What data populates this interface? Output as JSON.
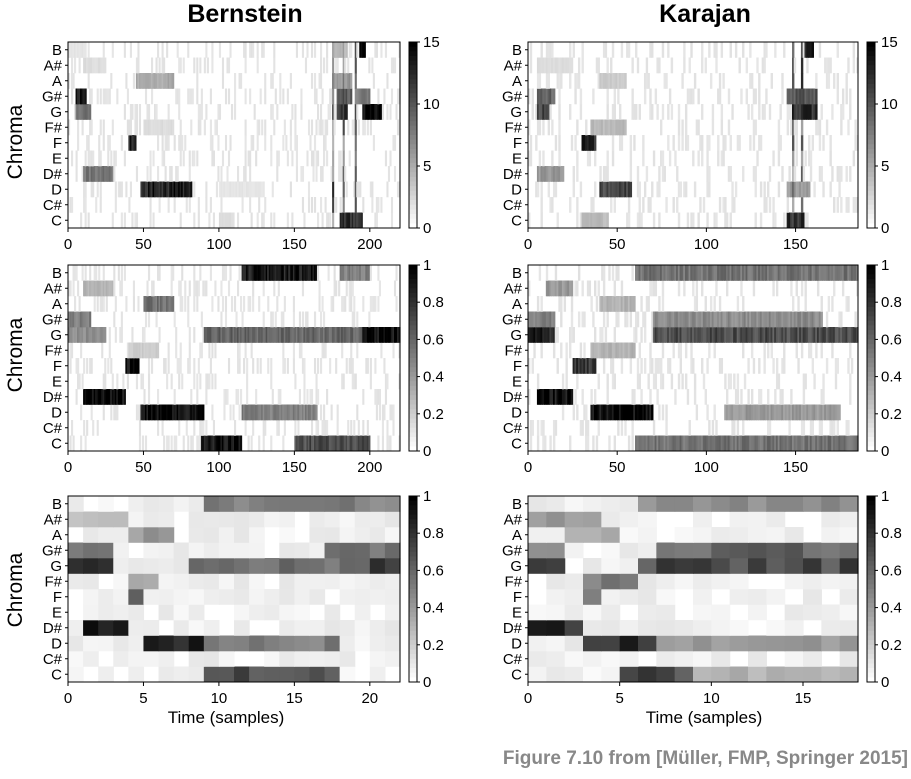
{
  "titles": {
    "left": "Bernstein",
    "right": "Karajan"
  },
  "caption": "Figure 7.10 from [Müller, FMP, Springer 2015]",
  "ylabel": "Chroma",
  "xlabel": "Time (samples)",
  "colors": {
    "scale_low": "#ffffff",
    "scale_high": "#000000",
    "caption": "#888888"
  },
  "chart_data": [
    {
      "type": "heatmap",
      "row": 1,
      "column": "Bernstein",
      "ylabel": "Chroma",
      "xlabel": "",
      "y_categories": [
        "C",
        "C#",
        "D",
        "D#",
        "E",
        "F",
        "F#",
        "G",
        "G#",
        "A",
        "A#",
        "B"
      ],
      "xlim": [
        0,
        220
      ],
      "xticks": [
        0,
        50,
        100,
        150,
        200
      ],
      "colorbar": {
        "range": [
          0,
          15
        ],
        "ticks": [
          0,
          5,
          10,
          15
        ]
      },
      "n_frames": 220,
      "colormap": "gray_r",
      "events": [
        {
          "p": "B",
          "a": 0,
          "b": 12,
          "v": 1.5
        },
        {
          "p": "B",
          "a": 175,
          "b": 185,
          "v": 4
        },
        {
          "p": "B",
          "a": 193,
          "b": 197,
          "v": 15
        },
        {
          "p": "A#",
          "a": 10,
          "b": 25,
          "v": 2
        },
        {
          "p": "A",
          "a": 45,
          "b": 70,
          "v": 5
        },
        {
          "p": "A",
          "a": 175,
          "b": 188,
          "v": 6
        },
        {
          "p": "G#",
          "a": 5,
          "b": 12,
          "v": 13
        },
        {
          "p": "G#",
          "a": 178,
          "b": 188,
          "v": 10
        },
        {
          "p": "G#",
          "a": 190,
          "b": 200,
          "v": 8
        },
        {
          "p": "G",
          "a": 5,
          "b": 15,
          "v": 8
        },
        {
          "p": "G",
          "a": 178,
          "b": 185,
          "v": 12
        },
        {
          "p": "G",
          "a": 195,
          "b": 208,
          "v": 15
        },
        {
          "p": "F#",
          "a": 50,
          "b": 70,
          "v": 2
        },
        {
          "p": "F",
          "a": 40,
          "b": 45,
          "v": 13
        },
        {
          "p": "D#",
          "a": 10,
          "b": 30,
          "v": 8
        },
        {
          "p": "D",
          "a": 48,
          "b": 82,
          "v": 13
        },
        {
          "p": "D",
          "a": 100,
          "b": 130,
          "v": 1.5
        },
        {
          "p": "C",
          "a": 180,
          "b": 195,
          "v": 12
        },
        {
          "p": "C",
          "a": 100,
          "b": 110,
          "v": 2
        }
      ],
      "onsets": [
        175,
        182,
        190
      ]
    },
    {
      "type": "heatmap",
      "row": 1,
      "column": "Karajan",
      "ylabel": "",
      "xlabel": "",
      "y_categories": [
        "C",
        "C#",
        "D",
        "D#",
        "E",
        "F",
        "F#",
        "G",
        "G#",
        "A",
        "A#",
        "B"
      ],
      "xlim": [
        0,
        185
      ],
      "xticks": [
        0,
        50,
        100,
        150
      ],
      "colorbar": {
        "range": [
          0,
          15
        ],
        "ticks": [
          0,
          5,
          10,
          15
        ]
      },
      "n_frames": 185,
      "colormap": "gray_r",
      "events": [
        {
          "p": "B",
          "a": 155,
          "b": 160,
          "v": 14
        },
        {
          "p": "A#",
          "a": 5,
          "b": 25,
          "v": 2
        },
        {
          "p": "A",
          "a": 40,
          "b": 55,
          "v": 3
        },
        {
          "p": "G#",
          "a": 5,
          "b": 15,
          "v": 9
        },
        {
          "p": "G#",
          "a": 145,
          "b": 162,
          "v": 10
        },
        {
          "p": "G",
          "a": 5,
          "b": 12,
          "v": 11
        },
        {
          "p": "G",
          "a": 148,
          "b": 162,
          "v": 12
        },
        {
          "p": "F#",
          "a": 35,
          "b": 55,
          "v": 4
        },
        {
          "p": "F",
          "a": 30,
          "b": 38,
          "v": 13
        },
        {
          "p": "D#",
          "a": 5,
          "b": 20,
          "v": 6
        },
        {
          "p": "D",
          "a": 40,
          "b": 58,
          "v": 11
        },
        {
          "p": "D",
          "a": 145,
          "b": 158,
          "v": 6
        },
        {
          "p": "C",
          "a": 30,
          "b": 45,
          "v": 4
        },
        {
          "p": "C",
          "a": 145,
          "b": 155,
          "v": 12
        }
      ],
      "onsets": [
        148,
        153
      ]
    },
    {
      "type": "heatmap",
      "row": 2,
      "column": "Bernstein",
      "ylabel": "Chroma",
      "xlabel": "",
      "y_categories": [
        "C",
        "C#",
        "D",
        "D#",
        "E",
        "F",
        "F#",
        "G",
        "G#",
        "A",
        "A#",
        "B"
      ],
      "xlim": [
        0,
        220
      ],
      "xticks": [
        0,
        50,
        100,
        150,
        200
      ],
      "colorbar": {
        "range": [
          0,
          1
        ],
        "ticks": [
          0,
          0.2,
          0.4,
          0.6,
          0.8,
          1
        ]
      },
      "n_frames": 220,
      "colormap": "gray_r",
      "events": [
        {
          "p": "B",
          "a": 115,
          "b": 165,
          "v": 0.9
        },
        {
          "p": "B",
          "a": 180,
          "b": 200,
          "v": 0.5
        },
        {
          "p": "A#",
          "a": 10,
          "b": 30,
          "v": 0.3
        },
        {
          "p": "A",
          "a": 50,
          "b": 70,
          "v": 0.55
        },
        {
          "p": "G#",
          "a": 0,
          "b": 15,
          "v": 0.5
        },
        {
          "p": "G",
          "a": 0,
          "b": 25,
          "v": 0.45
        },
        {
          "p": "G",
          "a": 90,
          "b": 200,
          "v": 0.6
        },
        {
          "p": "G",
          "a": 195,
          "b": 220,
          "v": 0.95
        },
        {
          "p": "F#",
          "a": 40,
          "b": 60,
          "v": 0.2
        },
        {
          "p": "F",
          "a": 38,
          "b": 47,
          "v": 0.95
        },
        {
          "p": "D#",
          "a": 10,
          "b": 38,
          "v": 0.95
        },
        {
          "p": "D",
          "a": 48,
          "b": 90,
          "v": 0.95
        },
        {
          "p": "D",
          "a": 115,
          "b": 165,
          "v": 0.5
        },
        {
          "p": "C",
          "a": 88,
          "b": 115,
          "v": 0.95
        },
        {
          "p": "C",
          "a": 150,
          "b": 200,
          "v": 0.7
        }
      ],
      "onsets": []
    },
    {
      "type": "heatmap",
      "row": 2,
      "column": "Karajan",
      "ylabel": "",
      "xlabel": "",
      "y_categories": [
        "C",
        "C#",
        "D",
        "D#",
        "E",
        "F",
        "F#",
        "G",
        "G#",
        "A",
        "A#",
        "B"
      ],
      "xlim": [
        0,
        185
      ],
      "xticks": [
        0,
        50,
        100,
        150
      ],
      "colorbar": {
        "range": [
          0,
          1
        ],
        "ticks": [
          0,
          0.2,
          0.4,
          0.6,
          0.8,
          1
        ]
      },
      "n_frames": 185,
      "colormap": "gray_r",
      "events": [
        {
          "p": "B",
          "a": 60,
          "b": 185,
          "v": 0.55
        },
        {
          "p": "A#",
          "a": 10,
          "b": 25,
          "v": 0.4
        },
        {
          "p": "A",
          "a": 40,
          "b": 60,
          "v": 0.3
        },
        {
          "p": "G#",
          "a": 0,
          "b": 15,
          "v": 0.5
        },
        {
          "p": "G#",
          "a": 70,
          "b": 165,
          "v": 0.45
        },
        {
          "p": "G",
          "a": 0,
          "b": 15,
          "v": 0.85
        },
        {
          "p": "G",
          "a": 70,
          "b": 185,
          "v": 0.7
        },
        {
          "p": "F#",
          "a": 35,
          "b": 60,
          "v": 0.3
        },
        {
          "p": "F",
          "a": 25,
          "b": 38,
          "v": 0.8
        },
        {
          "p": "D#",
          "a": 5,
          "b": 25,
          "v": 0.95
        },
        {
          "p": "D",
          "a": 35,
          "b": 70,
          "v": 0.95
        },
        {
          "p": "D",
          "a": 110,
          "b": 175,
          "v": 0.4
        },
        {
          "p": "C",
          "a": 60,
          "b": 185,
          "v": 0.55
        }
      ],
      "onsets": []
    },
    {
      "type": "heatmap",
      "row": 3,
      "column": "Bernstein",
      "ylabel": "Chroma",
      "xlabel": "Time (samples)",
      "y_categories": [
        "C",
        "C#",
        "D",
        "D#",
        "E",
        "F",
        "F#",
        "G",
        "G#",
        "A",
        "A#",
        "B"
      ],
      "xlim": [
        0,
        22
      ],
      "xticks": [
        0,
        5,
        10,
        15,
        20
      ],
      "colorbar": {
        "range": [
          0,
          1
        ],
        "ticks": [
          0,
          0.2,
          0.4,
          0.6,
          0.8,
          1
        ]
      },
      "n_frames": 22,
      "colormap": "gray_r",
      "events": [
        {
          "p": "B",
          "a": 9,
          "b": 22,
          "v": 0.5
        },
        {
          "p": "A#",
          "a": 0,
          "b": 4,
          "v": 0.25
        },
        {
          "p": "A",
          "a": 4,
          "b": 7,
          "v": 0.4
        },
        {
          "p": "G#",
          "a": 0,
          "b": 3,
          "v": 0.6
        },
        {
          "p": "G#",
          "a": 17,
          "b": 22,
          "v": 0.55
        },
        {
          "p": "G",
          "a": 0,
          "b": 3,
          "v": 0.75
        },
        {
          "p": "G",
          "a": 8,
          "b": 20,
          "v": 0.55
        },
        {
          "p": "G",
          "a": 20,
          "b": 22,
          "v": 0.85
        },
        {
          "p": "F#",
          "a": 4,
          "b": 6,
          "v": 0.3
        },
        {
          "p": "F",
          "a": 4,
          "b": 5,
          "v": 0.55
        },
        {
          "p": "D#",
          "a": 1,
          "b": 4,
          "v": 0.85
        },
        {
          "p": "D",
          "a": 5,
          "b": 9,
          "v": 0.9
        },
        {
          "p": "D",
          "a": 9,
          "b": 18,
          "v": 0.5
        },
        {
          "p": "C",
          "a": 9,
          "b": 18,
          "v": 0.7
        }
      ],
      "onsets": []
    },
    {
      "type": "heatmap",
      "row": 3,
      "column": "Karajan",
      "ylabel": "",
      "xlabel": "Time (samples)",
      "y_categories": [
        "C",
        "C#",
        "D",
        "D#",
        "E",
        "F",
        "F#",
        "G",
        "G#",
        "A",
        "A#",
        "B"
      ],
      "xlim": [
        0,
        18
      ],
      "xticks": [
        0,
        5,
        10,
        15
      ],
      "colorbar": {
        "range": [
          0,
          1
        ],
        "ticks": [
          0,
          0.2,
          0.4,
          0.6,
          0.8,
          1
        ]
      },
      "n_frames": 18,
      "colormap": "gray_r",
      "events": [
        {
          "p": "B",
          "a": 6,
          "b": 18,
          "v": 0.45
        },
        {
          "p": "A#",
          "a": 0,
          "b": 4,
          "v": 0.4
        },
        {
          "p": "A",
          "a": 2,
          "b": 5,
          "v": 0.3
        },
        {
          "p": "G#",
          "a": 0,
          "b": 2,
          "v": 0.5
        },
        {
          "p": "G#",
          "a": 7,
          "b": 18,
          "v": 0.6
        },
        {
          "p": "G",
          "a": 0,
          "b": 2,
          "v": 0.8
        },
        {
          "p": "G",
          "a": 6,
          "b": 18,
          "v": 0.7
        },
        {
          "p": "F#",
          "a": 3,
          "b": 6,
          "v": 0.5
        },
        {
          "p": "F",
          "a": 3,
          "b": 4,
          "v": 0.45
        },
        {
          "p": "D#",
          "a": 0,
          "b": 3,
          "v": 0.8
        },
        {
          "p": "D",
          "a": 3,
          "b": 7,
          "v": 0.8
        },
        {
          "p": "D",
          "a": 7,
          "b": 18,
          "v": 0.4
        },
        {
          "p": "C",
          "a": 5,
          "b": 9,
          "v": 0.7
        },
        {
          "p": "C",
          "a": 9,
          "b": 18,
          "v": 0.3
        }
      ],
      "onsets": []
    }
  ]
}
